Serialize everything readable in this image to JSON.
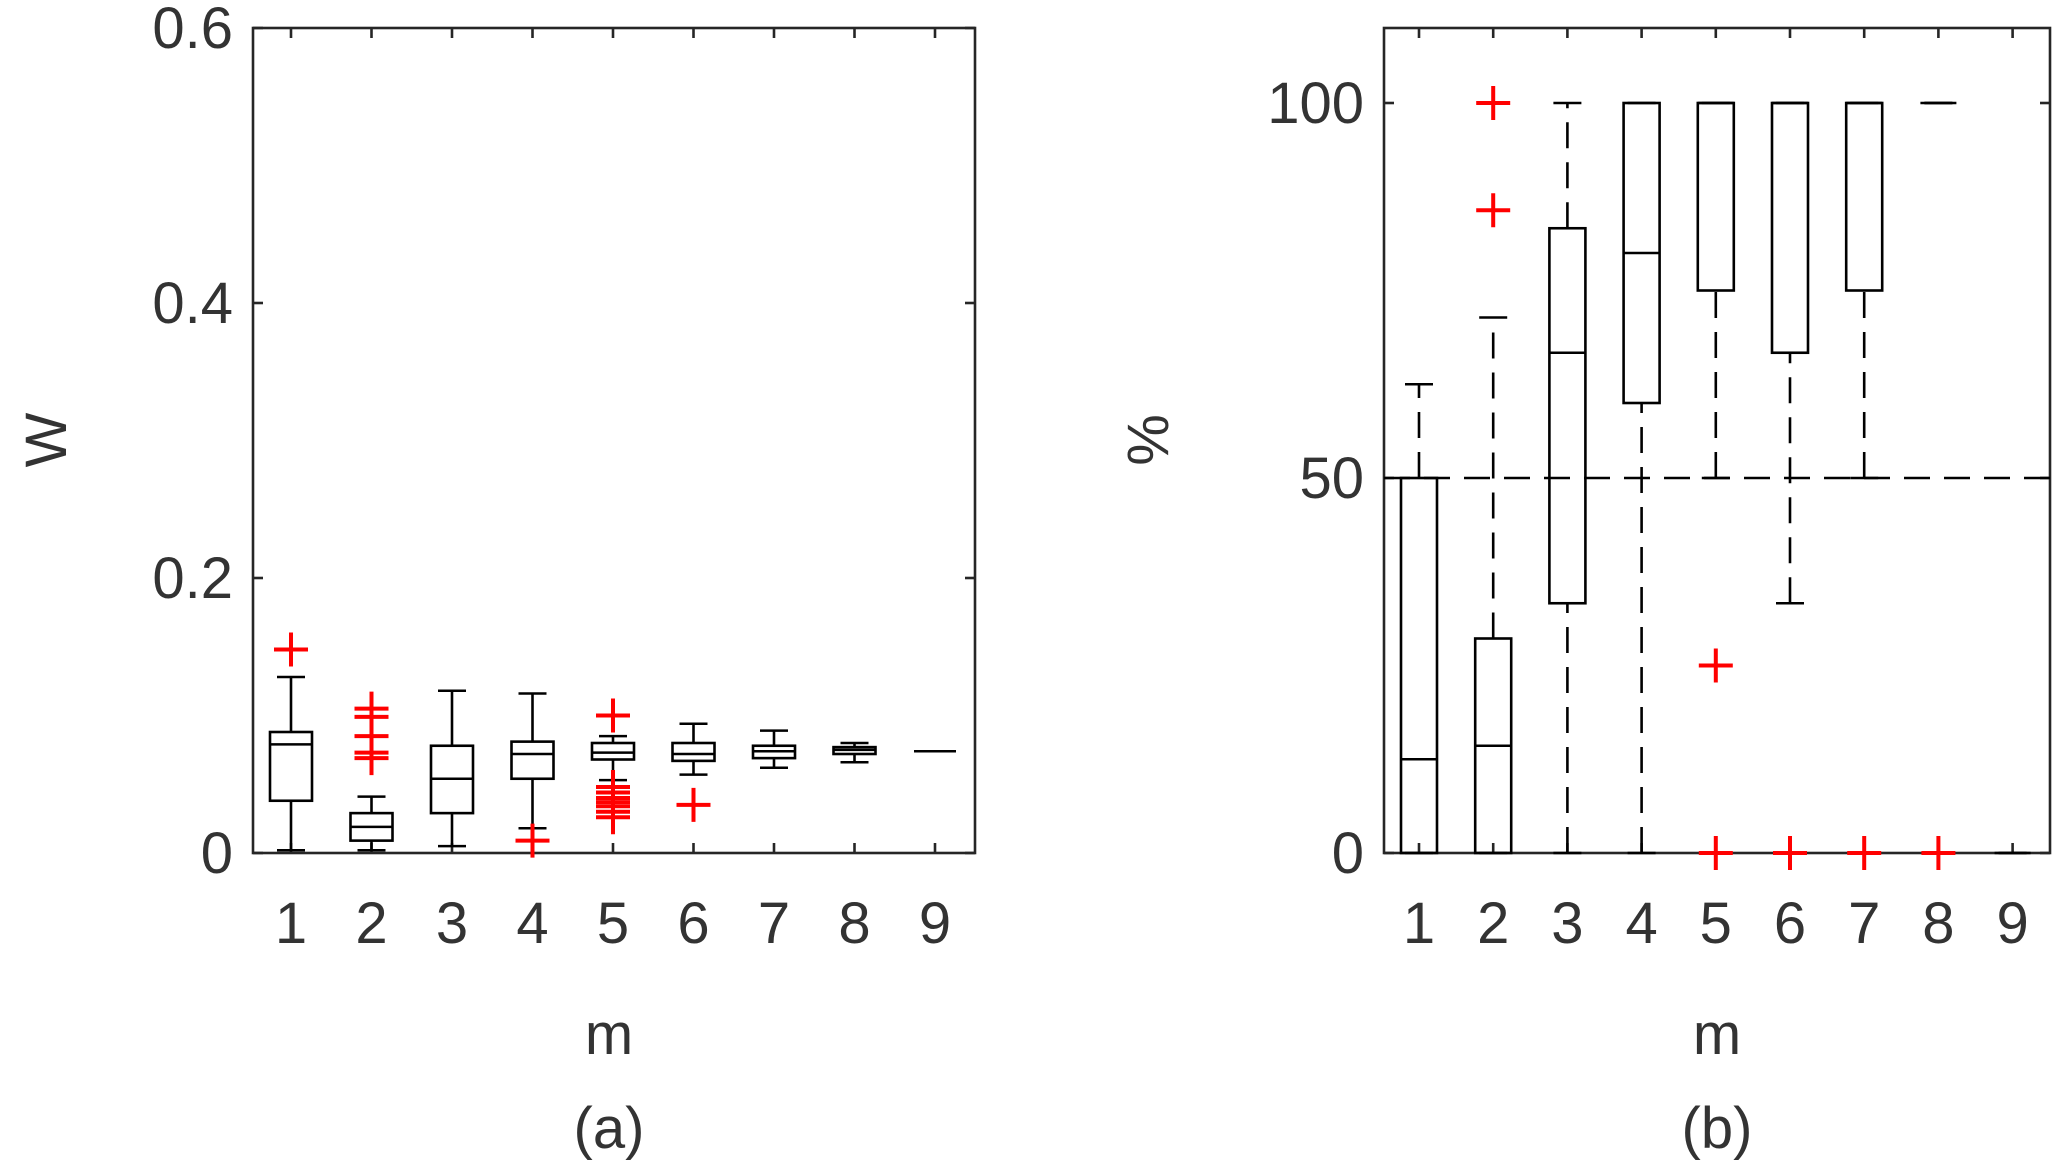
{
  "chart_data": [
    {
      "type": "box",
      "panel_caption": "(a)",
      "xlabel": "m",
      "ylabel": "W",
      "categories": [
        "1",
        "2",
        "3",
        "4",
        "5",
        "6",
        "7",
        "8",
        "9"
      ],
      "ylim": [
        0,
        0.6
      ],
      "yticks": [
        0,
        0.2,
        0.4,
        0.6
      ],
      "ytick_labels": [
        "0",
        "0.2",
        "0.4",
        "0.6"
      ],
      "boxes": [
        {
          "category": "1",
          "whisker_low": 0.002,
          "q1": 0.038,
          "median": 0.079,
          "q3": 0.088,
          "whisker_high": 0.128,
          "outliers": [
            0.148
          ]
        },
        {
          "category": "2",
          "whisker_low": 0.002,
          "q1": 0.009,
          "median": 0.019,
          "q3": 0.029,
          "whisker_high": 0.041,
          "outliers": [
            0.069,
            0.073,
            0.085,
            0.099,
            0.105
          ]
        },
        {
          "category": "3",
          "whisker_low": 0.005,
          "q1": 0.029,
          "median": 0.054,
          "q3": 0.078,
          "whisker_high": 0.118,
          "outliers": []
        },
        {
          "category": "4",
          "whisker_low": 0.018,
          "q1": 0.054,
          "median": 0.072,
          "q3": 0.081,
          "whisker_high": 0.116,
          "outliers": [
            0.009
          ]
        },
        {
          "category": "5",
          "whisker_low": 0.053,
          "q1": 0.068,
          "median": 0.073,
          "q3": 0.08,
          "whisker_high": 0.085,
          "outliers": [
            0.1,
            0.048,
            0.044,
            0.04,
            0.037,
            0.034,
            0.03,
            0.026
          ]
        },
        {
          "category": "6",
          "whisker_low": 0.057,
          "q1": 0.067,
          "median": 0.072,
          "q3": 0.08,
          "whisker_high": 0.094,
          "outliers": [
            0.035
          ]
        },
        {
          "category": "7",
          "whisker_low": 0.062,
          "q1": 0.069,
          "median": 0.074,
          "q3": 0.078,
          "whisker_high": 0.089,
          "outliers": []
        },
        {
          "category": "8",
          "whisker_low": 0.066,
          "q1": 0.072,
          "median": 0.075,
          "q3": 0.077,
          "whisker_high": 0.08,
          "outliers": []
        },
        {
          "category": "9",
          "whisker_low": 0.074,
          "q1": 0.074,
          "median": 0.074,
          "q3": 0.074,
          "whisker_high": 0.074,
          "outliers": []
        }
      ]
    },
    {
      "type": "box",
      "panel_caption": "(b)",
      "xlabel": "m",
      "ylabel": "%",
      "categories": [
        "1",
        "2",
        "3",
        "4",
        "5",
        "6",
        "7",
        "8",
        "9"
      ],
      "ylim": [
        0,
        110
      ],
      "yticks": [
        0,
        50,
        100
      ],
      "ytick_labels": [
        "0",
        "50",
        "100"
      ],
      "boxes": [
        {
          "category": "1",
          "whisker_low": 0,
          "q1": 0,
          "median": 12.5,
          "q3": 50,
          "whisker_high": 62.5,
          "outliers": []
        },
        {
          "category": "2",
          "whisker_low": 0,
          "q1": 0,
          "median": 14.3,
          "q3": 28.6,
          "whisker_high": 71.4,
          "outliers": [
            85.7,
            100
          ]
        },
        {
          "category": "3",
          "whisker_low": 0,
          "q1": 33.3,
          "median": 66.7,
          "q3": 83.3,
          "whisker_high": 100,
          "outliers": []
        },
        {
          "category": "4",
          "whisker_low": 0,
          "q1": 60,
          "median": 80,
          "q3": 100,
          "whisker_high": 100,
          "outliers": []
        },
        {
          "category": "5",
          "whisker_low": 50,
          "q1": 75,
          "median": 100,
          "q3": 100,
          "whisker_high": 100,
          "outliers": [
            25,
            0
          ]
        },
        {
          "category": "6",
          "whisker_low": 33.3,
          "q1": 66.7,
          "median": 100,
          "q3": 100,
          "whisker_high": 100,
          "outliers": [
            0
          ]
        },
        {
          "category": "7",
          "whisker_low": 50,
          "q1": 75,
          "median": 100,
          "q3": 100,
          "whisker_high": 100,
          "outliers": [
            0
          ]
        },
        {
          "category": "8",
          "whisker_low": 100,
          "q1": 100,
          "median": 100,
          "q3": 100,
          "whisker_high": 100,
          "outliers": [
            0
          ]
        },
        {
          "category": "9",
          "whisker_low": 0,
          "q1": 0,
          "median": 0,
          "q3": 0,
          "whisker_high": 0,
          "outliers": []
        }
      ],
      "reference_line": {
        "y": 50,
        "style": "dashed"
      }
    }
  ],
  "colors": {
    "box": "#000000",
    "outlier": "#ff0000",
    "axis": "#262626",
    "text": "#333333"
  }
}
